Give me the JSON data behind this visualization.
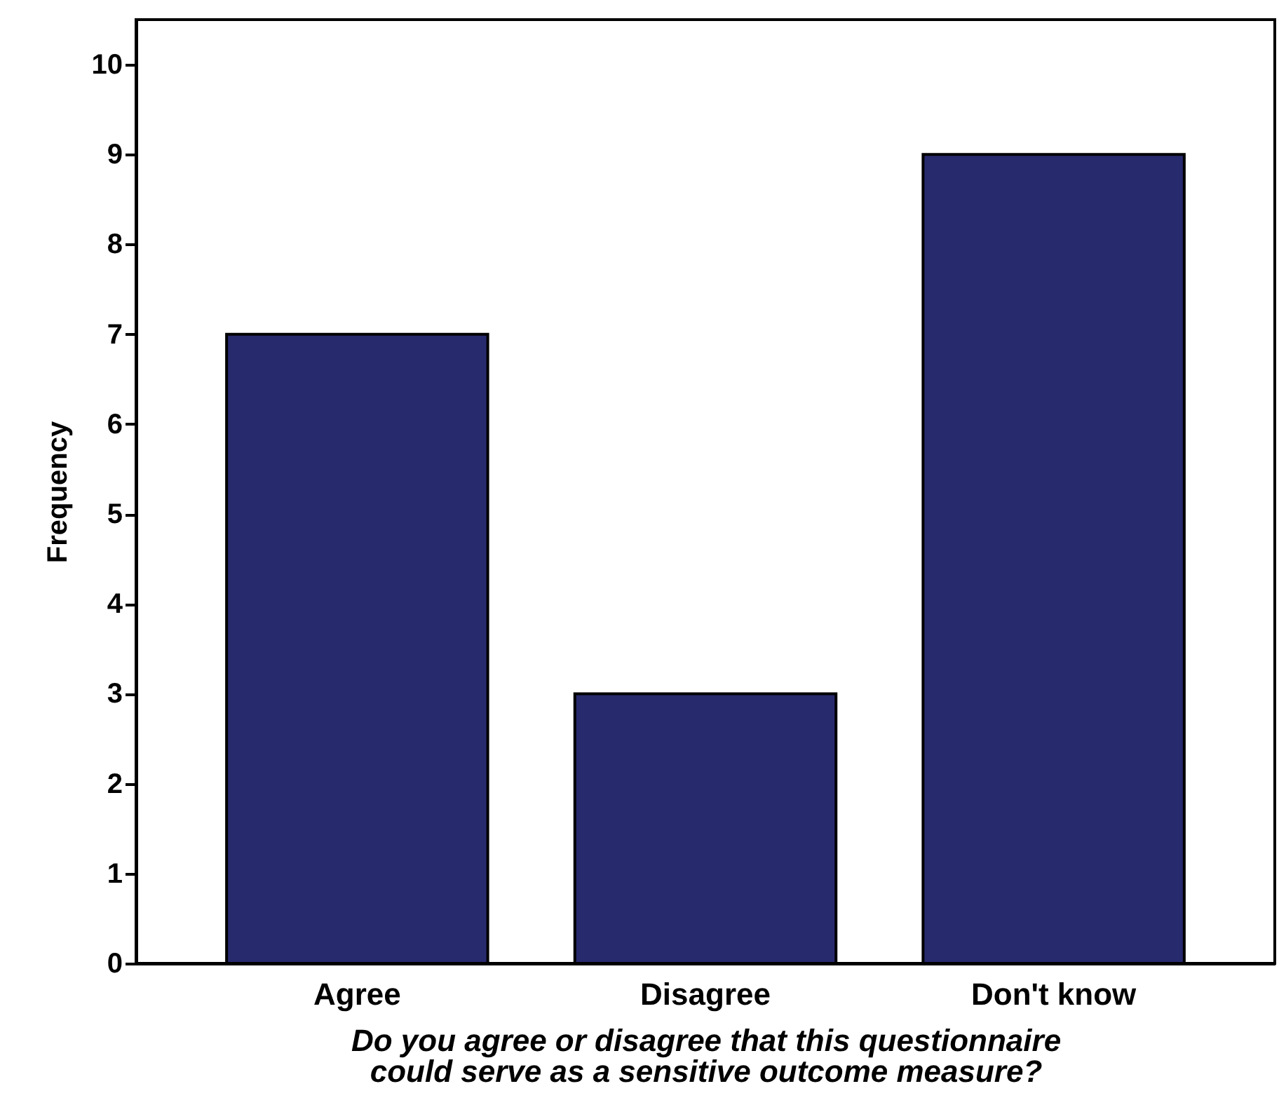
{
  "chart_data": {
    "type": "bar",
    "xlabel": "Do you agree or disagree that this questionnaire could serve as a sensitive outcome measure?",
    "ylabel": "Frequency",
    "categories": [
      "Agree",
      "Disagree",
      "Don't know"
    ],
    "values": [
      7,
      3,
      9
    ],
    "color": "#282a6e",
    "ylim": [
      0,
      10.5
    ],
    "yticks": [
      0,
      1,
      2,
      3,
      4,
      5,
      6,
      7,
      8,
      9,
      10
    ],
    "grid": false
  }
}
